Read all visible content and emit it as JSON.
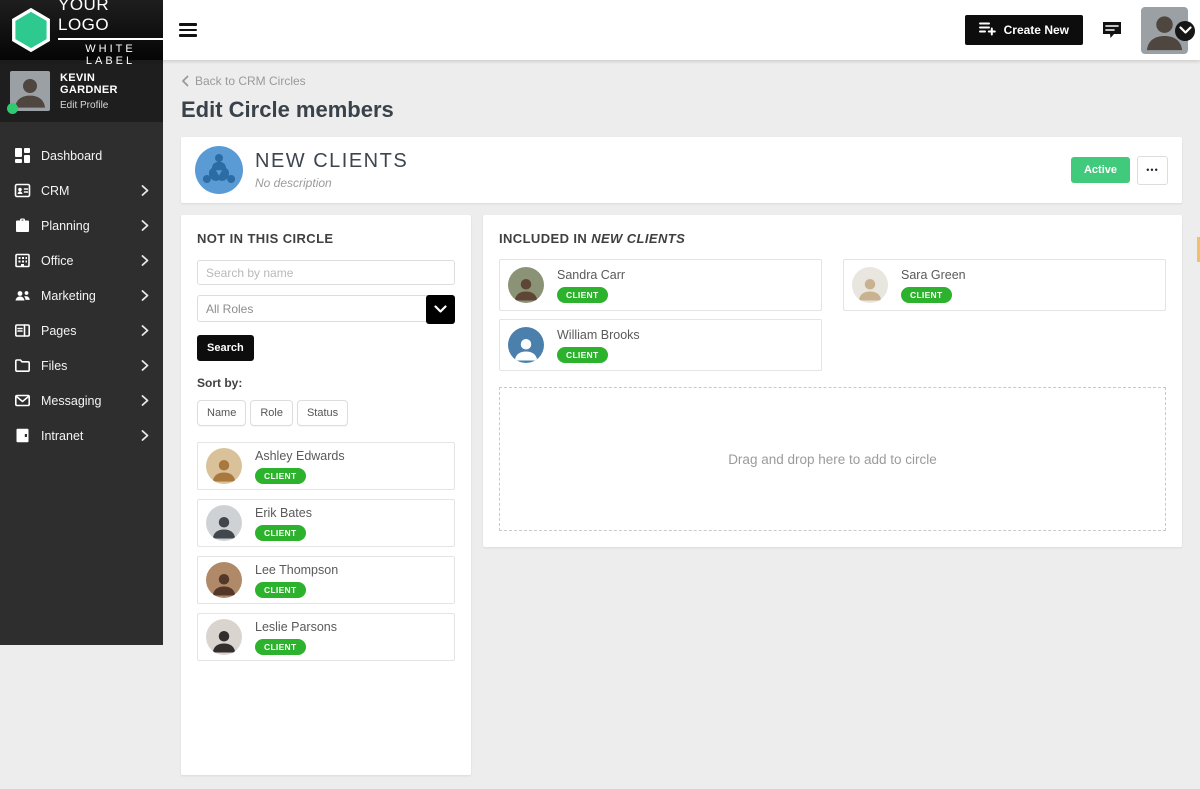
{
  "topbar": {
    "logo_line1": "YOUR LOGO",
    "logo_line2": "WHITE LABEL",
    "create_new_label": "Create New"
  },
  "sidebar": {
    "user_name": "KEVIN GARDNER",
    "user_link": "Edit Profile",
    "items": [
      {
        "label": "Dashboard",
        "icon": "dashboard-icon",
        "has_submenu": false
      },
      {
        "label": "CRM",
        "icon": "crm-icon",
        "has_submenu": true
      },
      {
        "label": "Planning",
        "icon": "planning-icon",
        "has_submenu": true
      },
      {
        "label": "Office",
        "icon": "office-icon",
        "has_submenu": true
      },
      {
        "label": "Marketing",
        "icon": "marketing-icon",
        "has_submenu": true
      },
      {
        "label": "Pages",
        "icon": "pages-icon",
        "has_submenu": true
      },
      {
        "label": "Files",
        "icon": "files-icon",
        "has_submenu": true
      },
      {
        "label": "Messaging",
        "icon": "messaging-icon",
        "has_submenu": true
      },
      {
        "label": "Intranet",
        "icon": "intranet-icon",
        "has_submenu": true
      }
    ]
  },
  "page": {
    "breadcrumb": "Back to CRM Circles",
    "title": "Edit Circle members"
  },
  "circle_header": {
    "name": "NEW CLIENTS",
    "description": "No description",
    "status_label": "Active",
    "more_label": "•••"
  },
  "left_panel": {
    "title": "NOT IN THIS CIRCLE",
    "search_placeholder": "Search by name",
    "role_filter_value": "All Roles",
    "search_button_label": "Search",
    "sort_label": "Sort by:",
    "sort_options": [
      "Name",
      "Role",
      "Status"
    ],
    "members": [
      {
        "name": "Ashley Edwards",
        "role": "CLIENT",
        "avatar_bg": "#d9c29a",
        "avatar_fg": "#a8783f"
      },
      {
        "name": "Erik Bates",
        "role": "CLIENT",
        "avatar_bg": "#cfd2d4",
        "avatar_fg": "#41474d"
      },
      {
        "name": "Lee Thompson",
        "role": "CLIENT",
        "avatar_bg": "#b08968",
        "avatar_fg": "#53382a"
      },
      {
        "name": "Leslie Parsons",
        "role": "CLIENT",
        "avatar_bg": "#d9d4ce",
        "avatar_fg": "#332d2e"
      }
    ]
  },
  "right_panel": {
    "title_prefix": "INCLUDED IN",
    "title_circle_name": "NEW CLIENTS",
    "members": [
      {
        "name": "Sandra Carr",
        "role": "CLIENT",
        "avatar_bg": "#8a9375",
        "avatar_fg": "#5f4536"
      },
      {
        "name": "Sara Green",
        "role": "CLIENT",
        "avatar_bg": "#e9e5df",
        "avatar_fg": "#c9b290"
      },
      {
        "name": "William Brooks",
        "role": "CLIENT",
        "avatar_bg": "#4a80ab",
        "avatar_fg": "#ffffff"
      }
    ],
    "dropzone_text": "Drag and drop here to add to circle"
  },
  "user": {
    "topbar_avatar_bg": "#9aa0a4",
    "topbar_avatar_fg": "#4e463f"
  },
  "colors": {
    "brand_green": "#2dc98e",
    "role_badge_green": "#2cb22c",
    "active_green": "#41c97c",
    "circle_avatar_blue": "#5b9bd5",
    "circle_avatar_figure_blue": "#2c6ca5",
    "online_dot_green": "#2ecc71"
  }
}
